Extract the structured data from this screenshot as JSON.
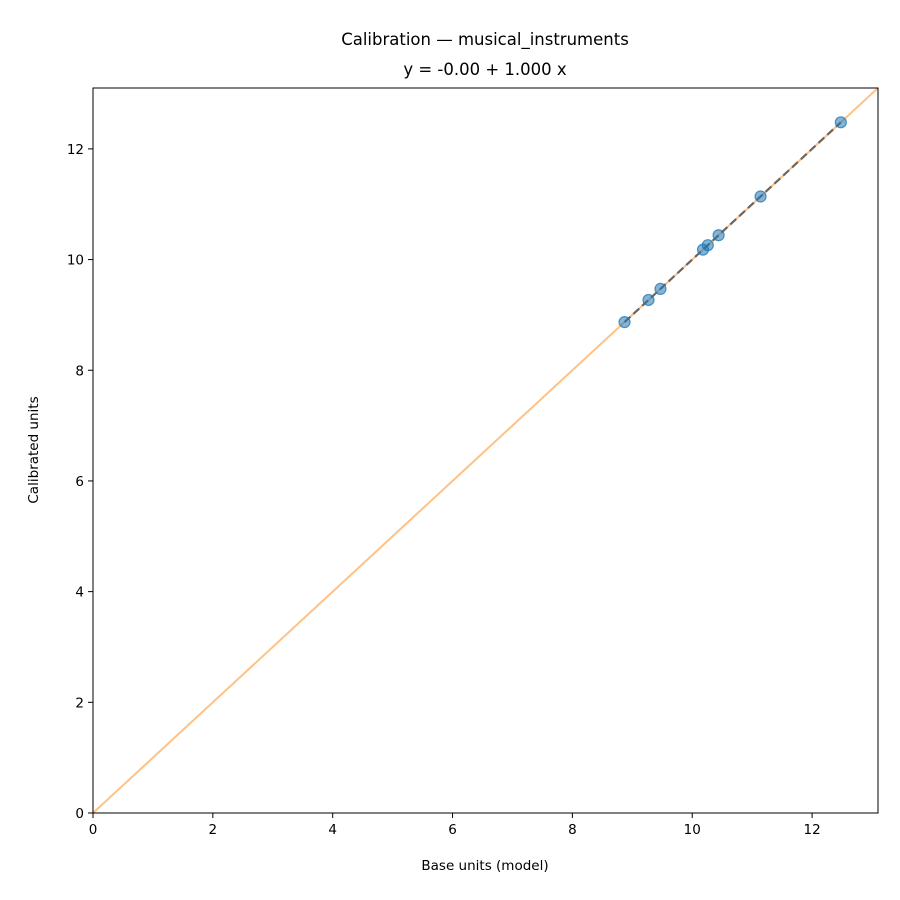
{
  "chart_data": {
    "type": "scatter",
    "title": "Calibration — musical_instruments",
    "subtitle": "y = -0.00 + 1.000 x",
    "xlabel": "Base units (model)",
    "ylabel": "Calibrated units",
    "xlim": [
      0,
      13.1
    ],
    "ylim": [
      0,
      13.1
    ],
    "xticks": [
      0,
      2,
      4,
      6,
      8,
      10,
      12
    ],
    "yticks": [
      0,
      2,
      4,
      6,
      8,
      10,
      12
    ],
    "xtick_labels": [
      "0",
      "2",
      "4",
      "6",
      "8",
      "10",
      "12"
    ],
    "ytick_labels": [
      "0",
      "2",
      "4",
      "6",
      "8",
      "10",
      "12"
    ],
    "grid": false,
    "series": [
      {
        "kind": "points",
        "x": [
          8.87,
          9.27,
          9.47,
          10.18,
          10.26,
          10.44,
          11.14,
          12.48
        ],
        "y": [
          8.87,
          9.27,
          9.47,
          10.18,
          10.26,
          10.44,
          11.14,
          12.48
        ],
        "color": "#1f77b4"
      },
      {
        "kind": "reference-line",
        "x": [
          0,
          13.1
        ],
        "y": [
          0,
          13.1
        ],
        "color": "#ffbb78"
      },
      {
        "kind": "fit-line",
        "x": [
          8.87,
          12.48
        ],
        "y": [
          8.87,
          12.48
        ],
        "color": "#555555",
        "style": "dashed"
      }
    ]
  }
}
